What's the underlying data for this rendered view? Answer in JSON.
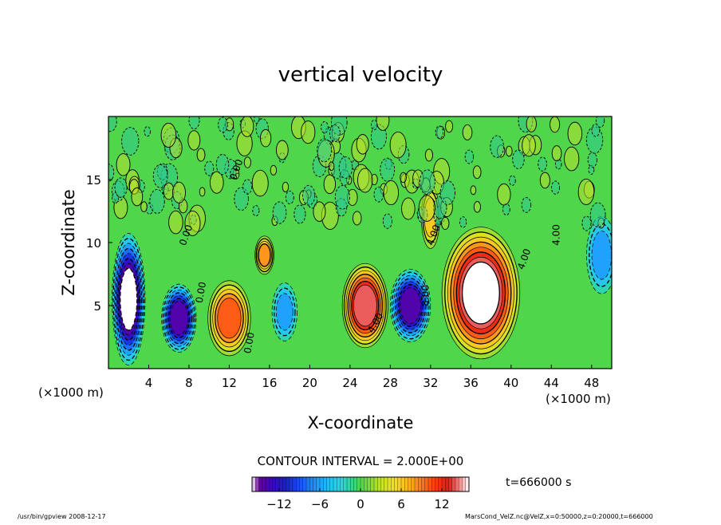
{
  "chart_data": {
    "type": "heatmap",
    "title": "vertical velocity",
    "xlabel": "X-coordinate",
    "ylabel": "Z-coordinate",
    "x_unit_label": "(×1000 m)",
    "x_unit_label_right": "(×1000 m)",
    "xlim": [
      0,
      50
    ],
    "ylim": [
      0,
      20
    ],
    "x_ticks": [
      "4",
      "8",
      "12",
      "16",
      "20",
      "24",
      "28",
      "32",
      "36",
      "40",
      "44",
      "48"
    ],
    "x_tick_values": [
      4,
      8,
      12,
      16,
      20,
      24,
      28,
      32,
      36,
      40,
      44,
      48
    ],
    "y_ticks": [
      "5",
      "10",
      "15"
    ],
    "y_tick_values": [
      5,
      10,
      15
    ],
    "contour_interval_label": "CONTOUR INTERVAL = 2.000E+00",
    "contour_interval": 2.0,
    "time_label": "t=666000 s",
    "colorbar": {
      "min": -16,
      "max": 16,
      "ticks": [
        "−12",
        "−6",
        "0",
        "6",
        "12"
      ],
      "tick_values": [
        -12,
        -6,
        0,
        6,
        12
      ]
    },
    "contour_labels": [
      "0.00",
      "0.00",
      "0.00",
      "0.00",
      "4.00",
      "8.00",
      "4.00",
      "4.00",
      "4.00"
    ],
    "features": [
      {
        "name": "downdraft",
        "x": 2.0,
        "z": 5.5,
        "value": -16
      },
      {
        "name": "downdraft",
        "x": 7.0,
        "z": 4.0,
        "value": -14
      },
      {
        "name": "updraft",
        "x": 12.0,
        "z": 4.0,
        "value": 10
      },
      {
        "name": "updraft",
        "x": 15.5,
        "z": 9.0,
        "value": 7
      },
      {
        "name": "downdraft",
        "x": 17.5,
        "z": 4.5,
        "value": -6
      },
      {
        "name": "updraft",
        "x": 25.5,
        "z": 5.0,
        "value": 14
      },
      {
        "name": "downdraft",
        "x": 30.0,
        "z": 5.0,
        "value": -14
      },
      {
        "name": "updraft",
        "x": 32.0,
        "z": 12.0,
        "value": 6
      },
      {
        "name": "updraft",
        "x": 37.0,
        "z": 6.0,
        "value": 16
      },
      {
        "name": "downdraft",
        "x": 49.0,
        "z": 9.0,
        "value": -6
      }
    ]
  },
  "footer": {
    "left": "/usr/bin/gpview   2008-12-17",
    "right": "MarsCond_VelZ.nc@VelZ,x=0:50000,z=0:20000,t=666000"
  }
}
